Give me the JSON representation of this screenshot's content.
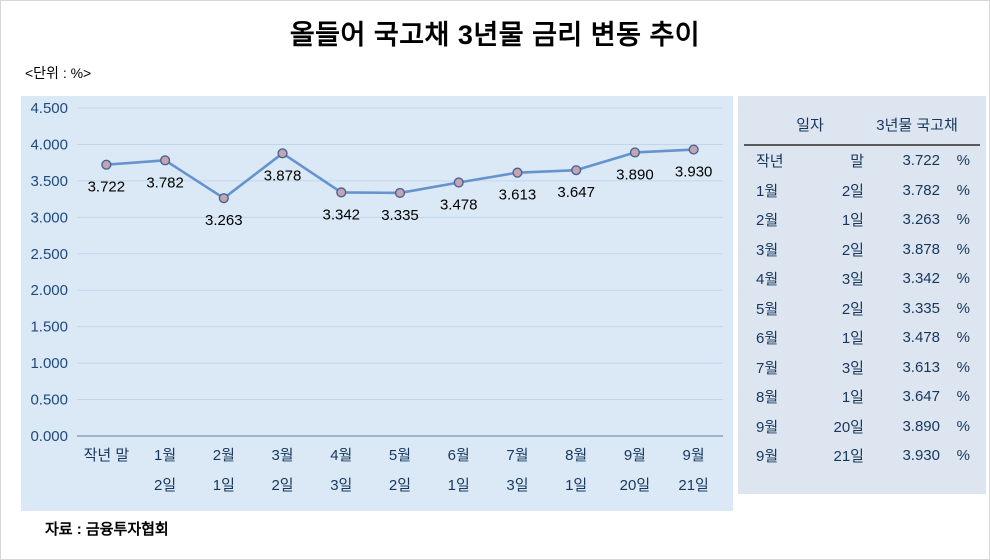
{
  "title": "올들어 국고채 3년물 금리 변동 추이",
  "unit_label": "<단위 : %>",
  "source": "자료 : 금융투자협회",
  "colors": {
    "plot_bg": "#dbe9f6",
    "table_bg": "#dde6f0",
    "grid": "#c2d6ea",
    "axis": "#8ba1bb",
    "line": "#6593cd",
    "marker_fill": "#c7a3ad",
    "marker_stroke": "#44659a",
    "tick_text": "#1f497d",
    "table_text": "#17365d"
  },
  "chart_data": {
    "type": "line",
    "title": "올들어 국고채 3년물 금리 변동 추이",
    "xlabel": "",
    "ylabel": "%",
    "categories": [
      "작년 말",
      "1월 2일",
      "2월 1일",
      "3월 2일",
      "4월 3일",
      "5월 2일",
      "6월 1일",
      "7월 3일",
      "8월 1일",
      "9월 20일",
      "9월 21일"
    ],
    "category_lines": [
      [
        "작년 말",
        ""
      ],
      [
        "1월",
        "2일"
      ],
      [
        "2월",
        "1일"
      ],
      [
        "3월",
        "2일"
      ],
      [
        "4월",
        "3일"
      ],
      [
        "5월",
        "2일"
      ],
      [
        "6월",
        "1일"
      ],
      [
        "7월",
        "3일"
      ],
      [
        "8월",
        "1일"
      ],
      [
        "9월",
        "20일"
      ],
      [
        "9월",
        "21일"
      ]
    ],
    "values": [
      3.722,
      3.782,
      3.263,
      3.878,
      3.342,
      3.335,
      3.478,
      3.613,
      3.647,
      3.89,
      3.93
    ],
    "value_labels": [
      "3.722",
      "3.782",
      "3.263",
      "3.878",
      "3.342",
      "3.335",
      "3.478",
      "3.613",
      "3.647",
      "3.890",
      "3.930"
    ],
    "ylim": [
      0,
      4.5
    ],
    "ytick_step": 0.5,
    "ytick_labels": [
      "0.000",
      "0.500",
      "1.000",
      "1.500",
      "2.000",
      "2.500",
      "3.000",
      "3.500",
      "4.000",
      "4.500"
    ],
    "grid": true,
    "legend": "none"
  },
  "table": {
    "headers": [
      "일자",
      "3년물 국고채"
    ],
    "percent": "%",
    "rows": [
      {
        "d1": "작년",
        "d2": "말",
        "v": "3.722"
      },
      {
        "d1": "1월",
        "d2": "2일",
        "v": "3.782"
      },
      {
        "d1": "2월",
        "d2": "1일",
        "v": "3.263"
      },
      {
        "d1": "3월",
        "d2": "2일",
        "v": "3.878"
      },
      {
        "d1": "4월",
        "d2": "3일",
        "v": "3.342"
      },
      {
        "d1": "5월",
        "d2": "2일",
        "v": "3.335"
      },
      {
        "d1": "6월",
        "d2": "1일",
        "v": "3.478"
      },
      {
        "d1": "7월",
        "d2": "3일",
        "v": "3.613"
      },
      {
        "d1": "8월",
        "d2": "1일",
        "v": "3.647"
      },
      {
        "d1": "9월",
        "d2": "20일",
        "v": "3.890"
      },
      {
        "d1": "9월",
        "d2": "21일",
        "v": "3.930"
      }
    ]
  }
}
